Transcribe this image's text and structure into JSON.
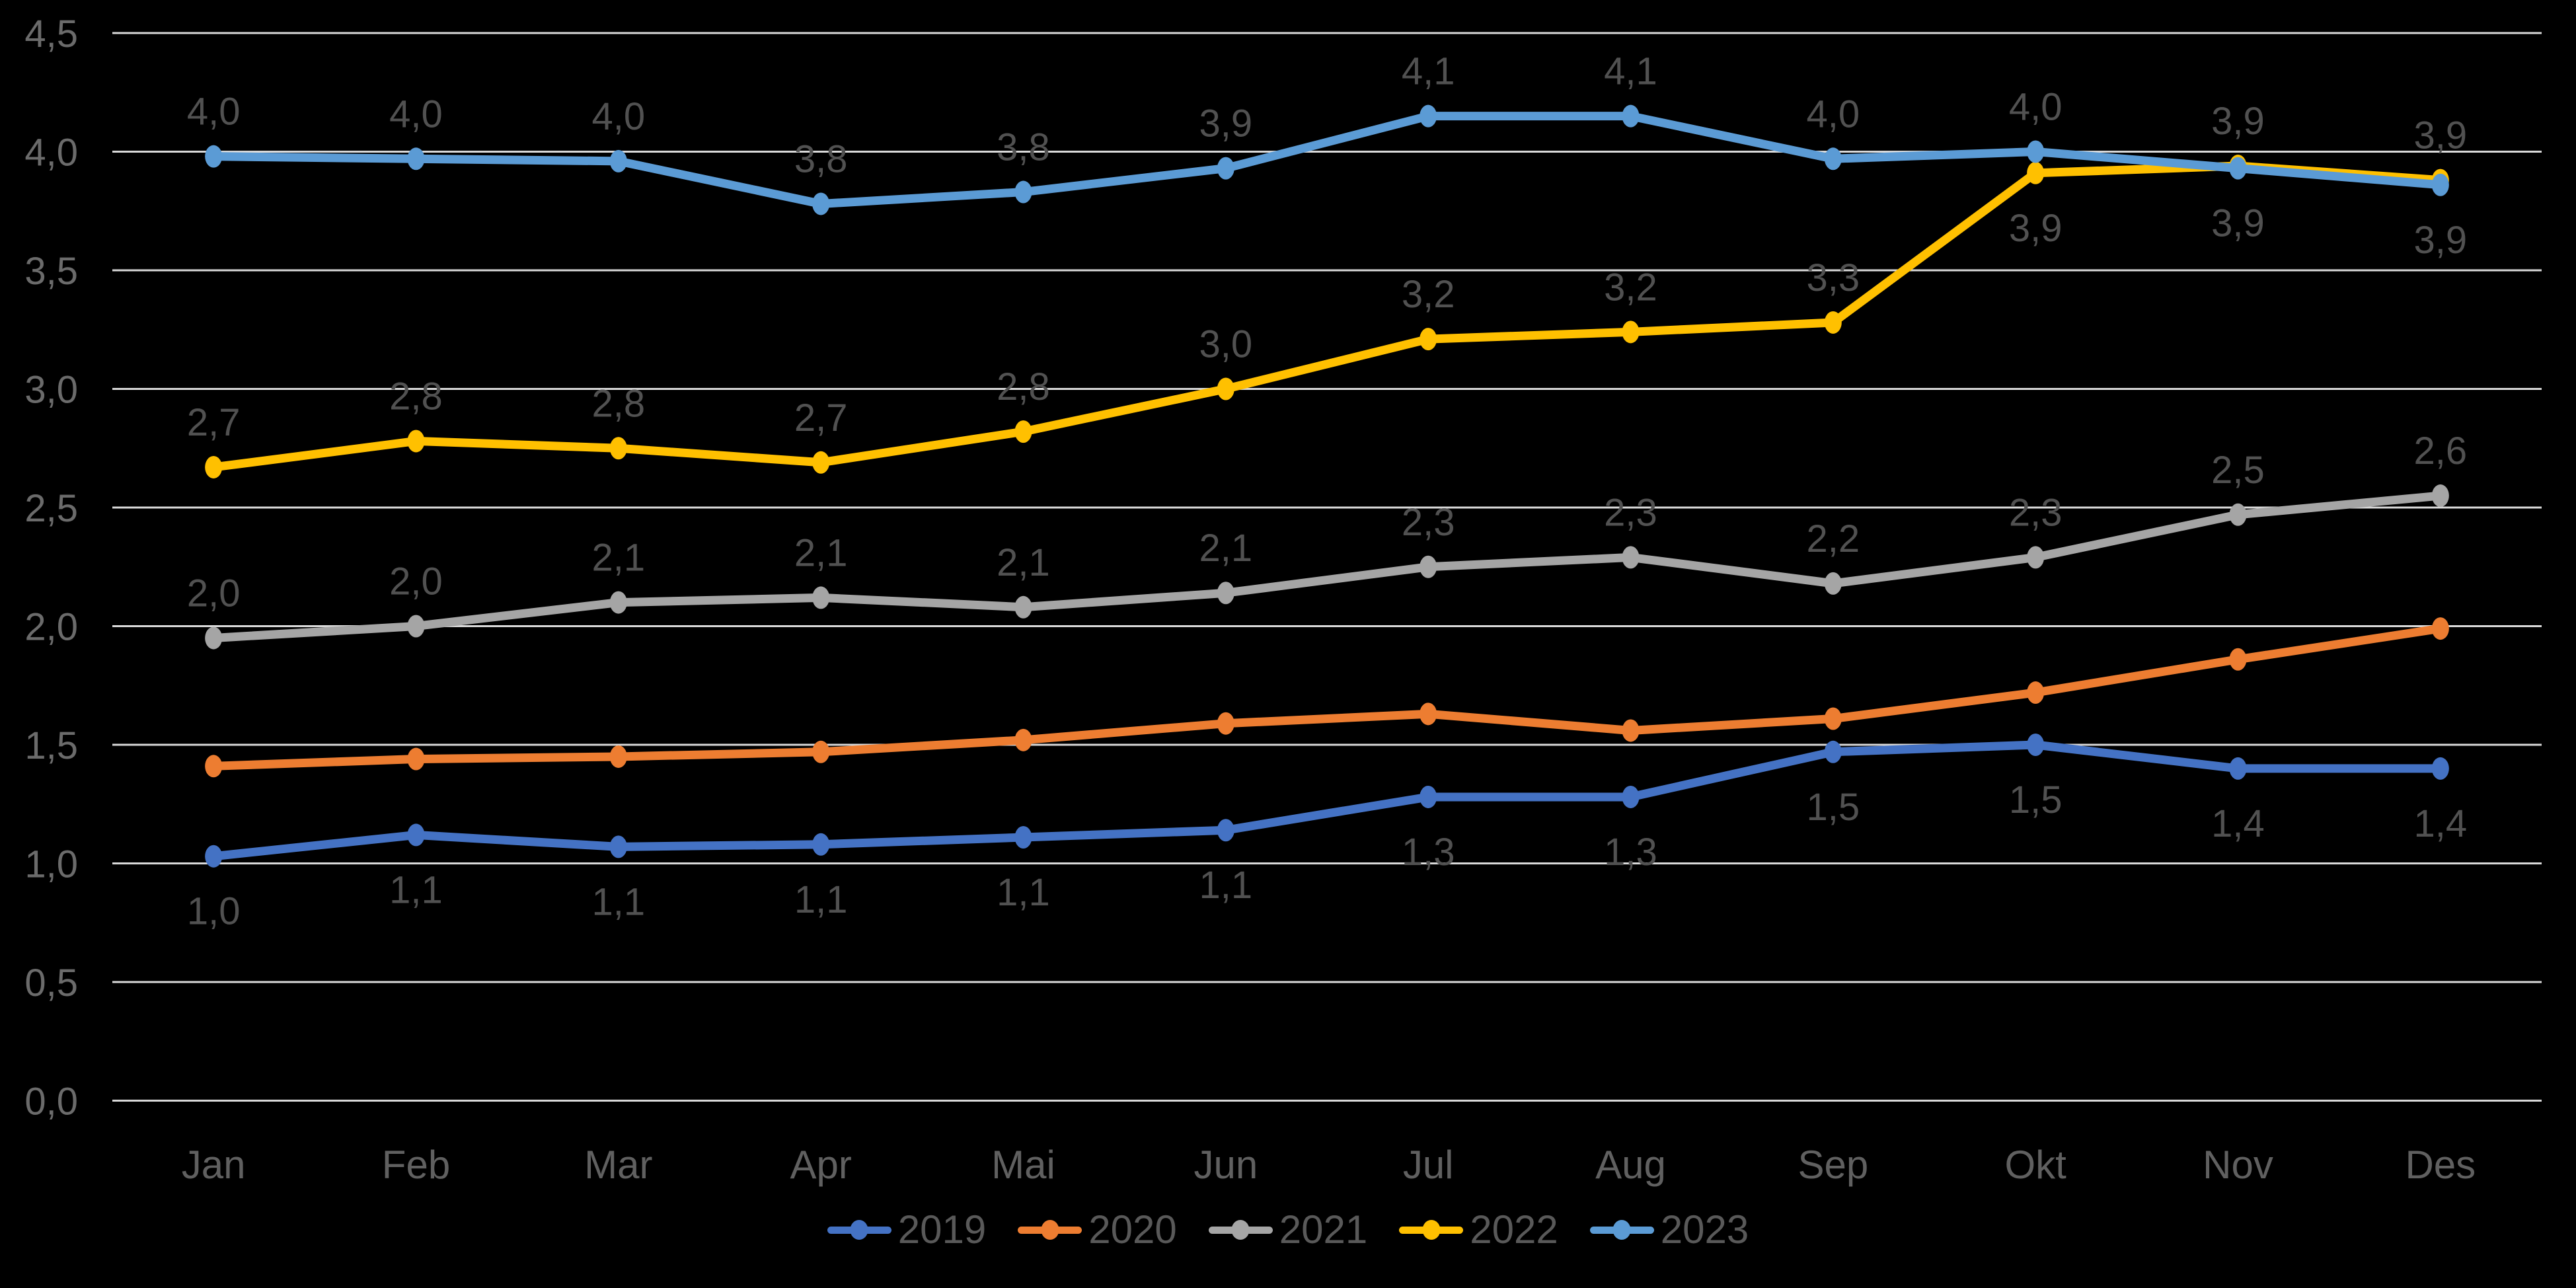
{
  "chart_data": {
    "type": "line",
    "title": "",
    "categories": [
      "Jan",
      "Feb",
      "Mar",
      "Apr",
      "Mai",
      "Jun",
      "Jul",
      "Aug",
      "Sep",
      "Okt",
      "Nov",
      "Des"
    ],
    "y_axis": {
      "min": 0,
      "max": 4.5,
      "step": 0.5,
      "tick_labels_top_to_bottom": [
        "4,5",
        "4,0",
        "3,5",
        "3,0",
        "2,5",
        "2,0",
        "1,5",
        "1,0",
        "0,5",
        "0,0"
      ]
    },
    "grid": true,
    "legend_position": "bottom-center",
    "series": [
      {
        "name": "2019",
        "color": "#4472C4",
        "values": [
          1.03,
          1.12,
          1.07,
          1.08,
          1.11,
          1.14,
          1.28,
          1.28,
          1.47,
          1.5,
          1.4,
          1.4
        ],
        "labels": [
          "1,0",
          "1,1",
          "1,1",
          "1,1",
          "1,1",
          "1,1",
          "1,3",
          "1,3",
          "1,5",
          "1,5",
          "1,4",
          "1,4"
        ],
        "label_position": "below",
        "label_overrides": {}
      },
      {
        "name": "2020",
        "color": "#ED7D31",
        "values": [
          1.41,
          1.44,
          1.45,
          1.47,
          1.52,
          1.59,
          1.63,
          1.56,
          1.61,
          1.72,
          1.86,
          1.99
        ],
        "labels": null,
        "label_position": "above",
        "label_overrides": {}
      },
      {
        "name": "2021",
        "color": "#A5A5A5",
        "values": [
          1.95,
          2.0,
          2.1,
          2.12,
          2.08,
          2.14,
          2.25,
          2.29,
          2.18,
          2.29,
          2.47,
          2.55
        ],
        "labels": [
          "2,0",
          "2,0",
          "2,1",
          "2,1",
          "2,1",
          "2,1",
          "2,3",
          "2,3",
          "2,2",
          "2,3",
          "2,5",
          "2,6"
        ],
        "label_position": "above",
        "label_overrides": {}
      },
      {
        "name": "2022",
        "color": "#FFC000",
        "values": [
          2.67,
          2.78,
          2.75,
          2.69,
          2.82,
          3.0,
          3.21,
          3.24,
          3.28,
          3.91,
          3.94,
          3.88
        ],
        "labels": [
          "2,7",
          "2,8",
          "2,8",
          "2,7",
          "2,8",
          "3,0",
          "3,2",
          "3,2",
          "3,3",
          "3,9",
          "3,9",
          "3,9"
        ],
        "label_position": "above",
        "label_overrides": {
          "9": "below"
        }
      },
      {
        "name": "2023",
        "color": "#5B9BD5",
        "values": [
          3.98,
          3.97,
          3.96,
          3.78,
          3.83,
          3.93,
          4.15,
          4.15,
          3.97,
          4.0,
          3.93,
          3.86
        ],
        "labels": [
          "4,0",
          "4,0",
          "4,0",
          "3,8",
          "3,8",
          "3,9",
          "4,1",
          "4,1",
          "4,0",
          "4,0",
          "3,9",
          "3,9"
        ],
        "label_position": "above",
        "label_overrides": {
          "10": "below",
          "11": "below"
        }
      }
    ],
    "colors": {
      "background": "#000000",
      "gridline": "#D9D9D9",
      "axis_text": "#6B6B6B",
      "month_text": "#606060",
      "data_label_text": "#515151",
      "legend_text": "#595959"
    }
  }
}
